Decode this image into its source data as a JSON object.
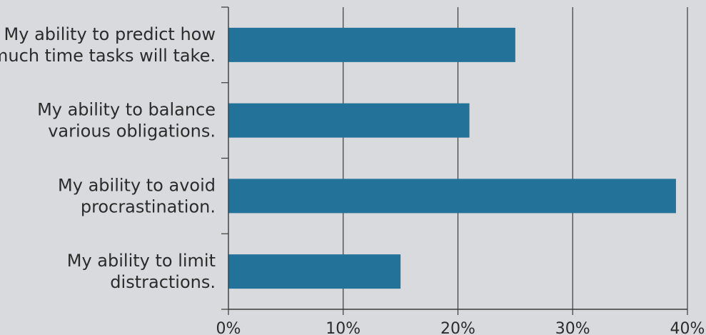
{
  "chart_data": {
    "type": "bar",
    "orientation": "horizontal",
    "categories": [
      [
        "My ability to predict how",
        "much time tasks will take."
      ],
      [
        "My ability to balance",
        "various obligations."
      ],
      [
        "My ability to avoid",
        "procrastination."
      ],
      [
        "My ability to limit",
        "distractions."
      ]
    ],
    "values": [
      25,
      21,
      39,
      15
    ],
    "xlim": [
      0,
      40
    ],
    "xticks": [
      0,
      10,
      20,
      30,
      40
    ],
    "tick_format": "{v}%",
    "bar_color": "#23729a",
    "grid": true,
    "title": "",
    "xlabel": "",
    "ylabel": ""
  }
}
